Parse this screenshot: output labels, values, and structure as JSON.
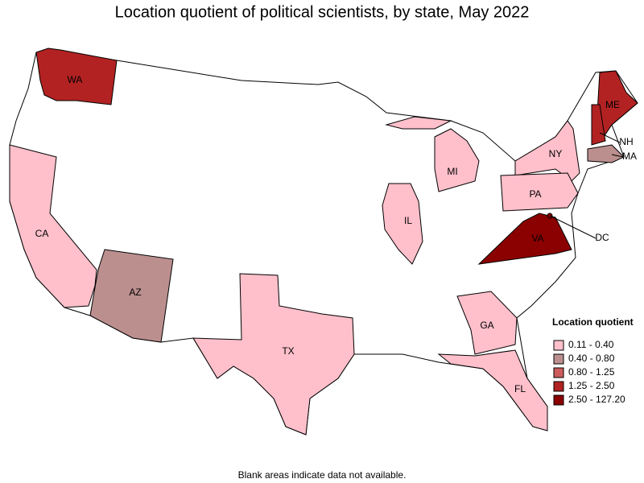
{
  "title": "Location quotient of political scientists, by state, May 2022",
  "states": [
    {
      "label": "WA",
      "color": "#b22222"
    },
    {
      "label": "CA",
      "color": "#ffc0cb"
    },
    {
      "label": "AZ",
      "color": "#bc8f8f"
    },
    {
      "label": "TX",
      "color": "#ffc0cb"
    },
    {
      "label": "IL",
      "color": "#ffc0cb"
    },
    {
      "label": "MI",
      "color": "#ffc0cb"
    },
    {
      "label": "NY",
      "color": "#ffc0cb"
    },
    {
      "label": "PA",
      "color": "#ffc0cb"
    },
    {
      "label": "VA",
      "color": "#8b0000"
    },
    {
      "label": "GA",
      "color": "#ffc0cb"
    },
    {
      "label": "FL",
      "color": "#ffc0cb"
    },
    {
      "label": "ME",
      "color": "#b22222"
    },
    {
      "label": "NH",
      "color": "#b22222"
    },
    {
      "label": "MA",
      "color": "#bc8f8f"
    },
    {
      "label": "DC",
      "color": "#8b0000"
    }
  ],
  "legend": {
    "title": "Location quotient",
    "items": [
      {
        "label": "0.11 - 0.40",
        "color": "#ffc0cb"
      },
      {
        "label": "0.40 - 0.80",
        "color": "#bc8f8f"
      },
      {
        "label": "0.80 - 1.25",
        "color": "#cd5c5c"
      },
      {
        "label": "1.25 - 2.50",
        "color": "#b22222"
      },
      {
        "label": "2.50 - 127.20",
        "color": "#8b0000"
      }
    ]
  },
  "footnote": "Blank areas indicate data not available."
}
